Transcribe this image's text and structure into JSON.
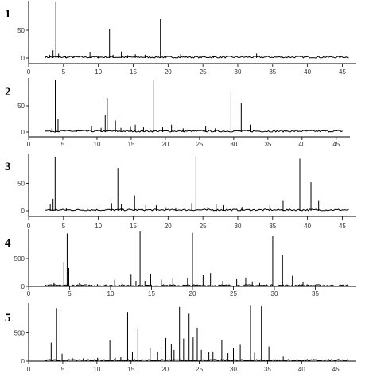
{
  "chart_data": [
    {
      "type": "line",
      "panel": "1",
      "xlim": [
        0,
        47
      ],
      "ylim": [
        0,
        100
      ],
      "x_ticks": [
        0,
        5,
        10,
        15,
        20,
        25,
        30,
        35,
        40,
        45
      ],
      "y_ticks": [
        0,
        50
      ],
      "x_tick_labels": [
        "0",
        "5",
        "10",
        "15",
        "20",
        "25",
        "30",
        "35",
        "40",
        "45"
      ],
      "y_tick_labels": [
        "0",
        "50"
      ],
      "peaks": [
        [
          3.0,
          6
        ],
        [
          3.5,
          14
        ],
        [
          3.9,
          100
        ],
        [
          4.3,
          8
        ],
        [
          5.3,
          4
        ],
        [
          6.4,
          3
        ],
        [
          8.8,
          10
        ],
        [
          10.0,
          4
        ],
        [
          11.6,
          52
        ],
        [
          12.1,
          6
        ],
        [
          13.3,
          12
        ],
        [
          14.2,
          5
        ],
        [
          15.3,
          7
        ],
        [
          16.7,
          6
        ],
        [
          18.9,
          70
        ],
        [
          19.7,
          4
        ],
        [
          21.8,
          7
        ],
        [
          26.5,
          3
        ],
        [
          32.7,
          8
        ]
      ]
    },
    {
      "type": "line",
      "panel": "2",
      "xlim": [
        0,
        47
      ],
      "ylim": [
        0,
        100
      ],
      "x_ticks": [
        0,
        5,
        10,
        15,
        20,
        25,
        30,
        35,
        40,
        45
      ],
      "y_ticks": [
        0,
        50
      ],
      "x_tick_labels": [
        "0",
        "5",
        "10",
        "15",
        "20",
        "25",
        "30",
        "35",
        "40",
        "45"
      ],
      "y_tick_labels": [
        "0",
        "50"
      ],
      "peaks": [
        [
          3.4,
          7
        ],
        [
          3.9,
          100
        ],
        [
          4.3,
          25
        ],
        [
          7.0,
          4
        ],
        [
          9.2,
          12
        ],
        [
          10.6,
          8
        ],
        [
          11.2,
          33
        ],
        [
          11.5,
          65
        ],
        [
          12.7,
          22
        ],
        [
          13.5,
          8
        ],
        [
          14.9,
          10
        ],
        [
          15.6,
          14
        ],
        [
          16.8,
          9
        ],
        [
          18.3,
          100
        ],
        [
          19.6,
          9
        ],
        [
          20.9,
          14
        ],
        [
          22.6,
          7
        ],
        [
          25.9,
          11
        ],
        [
          27.3,
          7
        ],
        [
          29.6,
          75
        ],
        [
          31.1,
          55
        ],
        [
          32.4,
          14
        ]
      ]
    },
    {
      "type": "line",
      "panel": "3",
      "xlim": [
        0,
        47
      ],
      "ylim": [
        0,
        100
      ],
      "x_ticks": [
        0,
        5,
        10,
        15,
        20,
        25,
        30,
        35,
        40,
        45
      ],
      "y_ticks": [
        0,
        50
      ],
      "x_tick_labels": [
        "0",
        "5",
        "10",
        "15",
        "20",
        "25",
        "30",
        "35",
        "40",
        "45"
      ],
      "y_tick_labels": [
        "0",
        "50"
      ],
      "peaks": [
        [
          3.1,
          12
        ],
        [
          3.5,
          22
        ],
        [
          3.8,
          98
        ],
        [
          5.4,
          5
        ],
        [
          8.4,
          6
        ],
        [
          10.1,
          12
        ],
        [
          11.9,
          14
        ],
        [
          12.8,
          78
        ],
        [
          13.3,
          12
        ],
        [
          15.2,
          28
        ],
        [
          16.8,
          10
        ],
        [
          18.3,
          10
        ],
        [
          19.6,
          7
        ],
        [
          21.1,
          6
        ],
        [
          23.4,
          14
        ],
        [
          24.0,
          100
        ],
        [
          25.7,
          7
        ],
        [
          26.9,
          13
        ],
        [
          28.0,
          10
        ],
        [
          30.6,
          7
        ],
        [
          34.6,
          10
        ],
        [
          36.5,
          18
        ],
        [
          38.9,
          95
        ],
        [
          40.5,
          52
        ],
        [
          41.6,
          18
        ]
      ]
    },
    {
      "type": "line",
      "panel": "4",
      "xlim": [
        0,
        40
      ],
      "ylim": [
        0,
        1000
      ],
      "x_ticks": [
        0,
        5,
        10,
        15,
        20,
        25,
        30,
        35
      ],
      "y_ticks": [
        0,
        500
      ],
      "x_tick_labels": [
        "0",
        "5",
        "10",
        "15",
        "20",
        "25",
        "30",
        "35"
      ],
      "y_tick_labels": [
        "0",
        "500"
      ],
      "peaks": [
        [
          3.1,
          60
        ],
        [
          4.3,
          430
        ],
        [
          4.7,
          950
        ],
        [
          4.9,
          330
        ],
        [
          6.2,
          60
        ],
        [
          8.4,
          40
        ],
        [
          10.5,
          120
        ],
        [
          11.4,
          90
        ],
        [
          12.5,
          210
        ],
        [
          13.1,
          100
        ],
        [
          13.6,
          990
        ],
        [
          14.2,
          100
        ],
        [
          14.9,
          230
        ],
        [
          16.2,
          120
        ],
        [
          17.6,
          140
        ],
        [
          19.4,
          150
        ],
        [
          20.0,
          960
        ],
        [
          21.3,
          200
        ],
        [
          22.2,
          240
        ],
        [
          23.7,
          100
        ],
        [
          25.4,
          130
        ],
        [
          26.5,
          160
        ],
        [
          27.3,
          90
        ],
        [
          28.2,
          60
        ],
        [
          29.8,
          900
        ],
        [
          31.0,
          570
        ],
        [
          32.2,
          190
        ],
        [
          33.5,
          80
        ]
      ]
    },
    {
      "type": "line",
      "panel": "5",
      "xlim": [
        0,
        48
      ],
      "ylim": [
        0,
        1000
      ],
      "x_ticks": [
        0,
        5,
        10,
        15,
        20,
        25,
        30,
        35,
        40,
        45
      ],
      "y_ticks": [
        0,
        500
      ],
      "x_tick_labels": [
        "0",
        "5",
        "10",
        "15",
        "20",
        "25",
        "30",
        "35",
        "40",
        "45"
      ],
      "y_tick_labels": [
        "0",
        "500"
      ],
      "peaks": [
        [
          3.3,
          330
        ],
        [
          4.1,
          940
        ],
        [
          4.6,
          960
        ],
        [
          4.9,
          130
        ],
        [
          6.4,
          60
        ],
        [
          8.0,
          50
        ],
        [
          10.1,
          60
        ],
        [
          11.9,
          370
        ],
        [
          12.7,
          60
        ],
        [
          13.5,
          70
        ],
        [
          14.5,
          870
        ],
        [
          15.2,
          160
        ],
        [
          16.0,
          560
        ],
        [
          16.6,
          200
        ],
        [
          17.8,
          230
        ],
        [
          18.9,
          170
        ],
        [
          19.4,
          270
        ],
        [
          20.1,
          410
        ],
        [
          20.9,
          310
        ],
        [
          21.3,
          200
        ],
        [
          22.1,
          960
        ],
        [
          22.7,
          400
        ],
        [
          23.5,
          840
        ],
        [
          24.1,
          420
        ],
        [
          24.7,
          590
        ],
        [
          25.3,
          200
        ],
        [
          26.4,
          160
        ],
        [
          27.0,
          170
        ],
        [
          28.3,
          380
        ],
        [
          29.2,
          140
        ],
        [
          30.0,
          230
        ],
        [
          31.0,
          290
        ],
        [
          32.5,
          980
        ],
        [
          33.1,
          150
        ],
        [
          34.1,
          970
        ],
        [
          35.2,
          260
        ],
        [
          37.3,
          80
        ]
      ]
    }
  ]
}
